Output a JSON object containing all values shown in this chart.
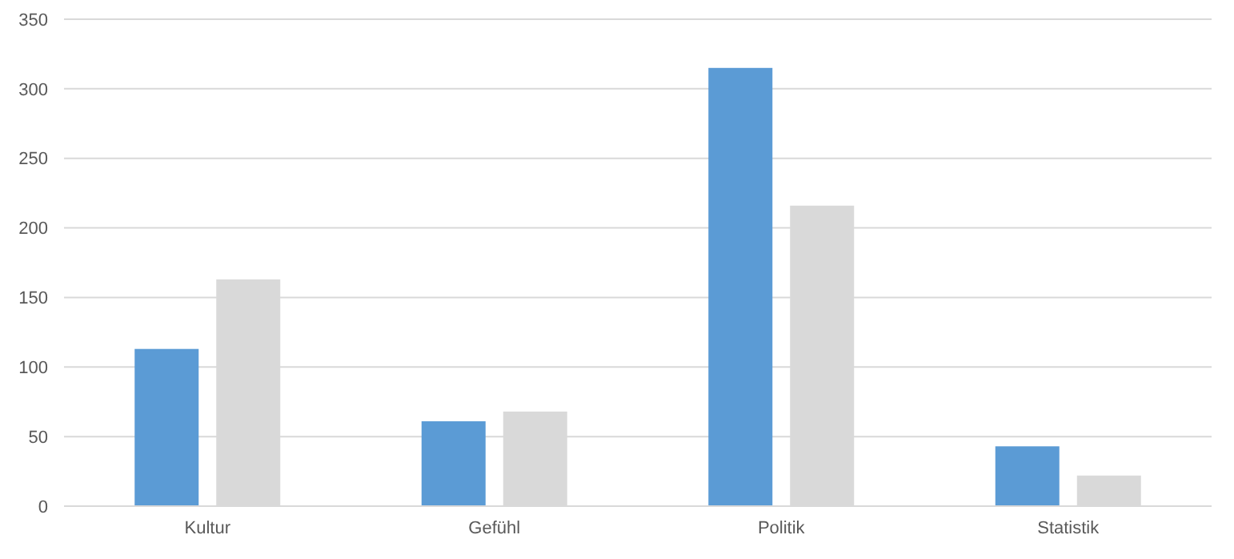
{
  "chart_data": {
    "type": "bar",
    "categories": [
      "Kultur",
      "Gefühl",
      "Politik",
      "Statistik"
    ],
    "series": [
      {
        "color": "#5b9bd5",
        "values": [
          113,
          61,
          315,
          43
        ]
      },
      {
        "color": "#d9d9d9",
        "values": [
          163,
          68,
          216,
          22
        ]
      }
    ],
    "ylim": [
      0,
      350
    ],
    "yticks": [
      0,
      50,
      100,
      150,
      200,
      250,
      300,
      350
    ],
    "grid": "y"
  }
}
